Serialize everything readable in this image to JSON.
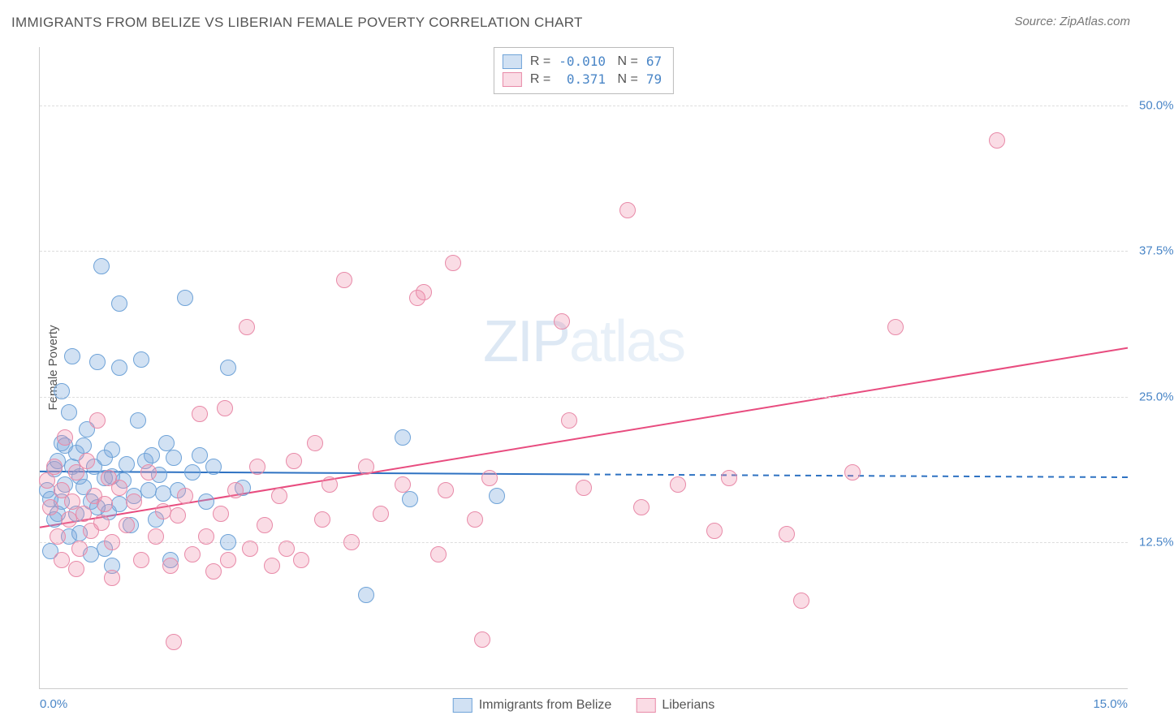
{
  "title": "IMMIGRANTS FROM BELIZE VS LIBERIAN FEMALE POVERTY CORRELATION CHART",
  "source": "Source: ZipAtlas.com",
  "watermark_a": "ZIP",
  "watermark_b": "atlas",
  "chart": {
    "type": "scatter",
    "background": "#ffffff",
    "grid_color": "#dddddd",
    "axis_color": "#cccccc",
    "yaxis_title": "Female Poverty",
    "xlim": [
      0,
      15
    ],
    "ylim": [
      0,
      55
    ],
    "yticks": [
      12.5,
      25.0,
      37.5,
      50.0
    ],
    "ytick_labels": [
      "12.5%",
      "25.0%",
      "37.5%",
      "50.0%"
    ],
    "xtick_labels": {
      "left": "0.0%",
      "right": "15.0%"
    },
    "tick_color": "#4a86c7",
    "marker_radius": 9,
    "marker_border": 1,
    "series": [
      {
        "name": "Immigrants from Belize",
        "fill": "rgba(122,170,220,0.35)",
        "stroke": "#6fa3d8",
        "R": "-0.010",
        "N": "67",
        "regression": {
          "x1": 0,
          "y1": 18.6,
          "x2": 15,
          "y2": 18.1,
          "solid_until_x": 7.5,
          "color": "#2e72c2",
          "width": 2
        },
        "points": [
          [
            0.1,
            17.0
          ],
          [
            0.15,
            16.2
          ],
          [
            0.2,
            18.8
          ],
          [
            0.2,
            14.5
          ],
          [
            0.25,
            19.5
          ],
          [
            0.3,
            16.0
          ],
          [
            0.3,
            21.0
          ],
          [
            0.35,
            17.5
          ],
          [
            0.4,
            23.7
          ],
          [
            0.4,
            13.0
          ],
          [
            0.45,
            19.0
          ],
          [
            0.5,
            20.2
          ],
          [
            0.5,
            15.0
          ],
          [
            0.55,
            18.2
          ],
          [
            0.6,
            17.3
          ],
          [
            0.65,
            22.2
          ],
          [
            0.7,
            16.0
          ],
          [
            0.3,
            25.5
          ],
          [
            0.75,
            19.0
          ],
          [
            0.8,
            28.0
          ],
          [
            0.85,
            36.2
          ],
          [
            0.9,
            18.0
          ],
          [
            0.95,
            15.1
          ],
          [
            1.0,
            20.5
          ],
          [
            1.1,
            27.5
          ],
          [
            1.1,
            33.0
          ],
          [
            1.15,
            17.8
          ],
          [
            1.2,
            19.2
          ],
          [
            1.25,
            14.0
          ],
          [
            1.3,
            16.5
          ],
          [
            1.35,
            23.0
          ],
          [
            1.4,
            28.2
          ],
          [
            1.45,
            19.5
          ],
          [
            1.5,
            17.0
          ],
          [
            1.55,
            20.0
          ],
          [
            1.6,
            14.5
          ],
          [
            1.65,
            18.3
          ],
          [
            1.7,
            16.7
          ],
          [
            1.75,
            21.0
          ],
          [
            1.8,
            11.0
          ],
          [
            1.85,
            19.8
          ],
          [
            1.9,
            17.0
          ],
          [
            0.9,
            12.0
          ],
          [
            0.7,
            11.5
          ],
          [
            1.0,
            10.5
          ],
          [
            2.0,
            33.5
          ],
          [
            2.1,
            18.5
          ],
          [
            2.2,
            20.0
          ],
          [
            2.3,
            16.0
          ],
          [
            2.4,
            19.0
          ],
          [
            2.6,
            27.5
          ],
          [
            2.6,
            12.5
          ],
          [
            2.8,
            17.2
          ],
          [
            0.45,
            28.5
          ],
          [
            5.0,
            21.5
          ],
          [
            5.1,
            16.2
          ],
          [
            4.5,
            8.0
          ],
          [
            6.3,
            16.5
          ],
          [
            0.55,
            13.3
          ],
          [
            0.6,
            20.8
          ],
          [
            0.8,
            15.5
          ],
          [
            0.35,
            20.8
          ],
          [
            0.25,
            15.0
          ],
          [
            0.9,
            19.8
          ],
          [
            1.0,
            18.2
          ],
          [
            1.1,
            15.8
          ],
          [
            0.15,
            11.8
          ]
        ]
      },
      {
        "name": "Liberians",
        "fill": "rgba(240,140,170,0.30)",
        "stroke": "#e88aa8",
        "R": "0.371",
        "N": "79",
        "regression": {
          "x1": 0,
          "y1": 13.8,
          "x2": 15,
          "y2": 29.2,
          "solid_until_x": 15,
          "color": "#e84c7f",
          "width": 2
        },
        "points": [
          [
            0.1,
            17.8
          ],
          [
            0.15,
            15.5
          ],
          [
            0.2,
            19.0
          ],
          [
            0.25,
            13.0
          ],
          [
            0.3,
            17.0
          ],
          [
            0.35,
            21.5
          ],
          [
            0.4,
            14.5
          ],
          [
            0.45,
            16.0
          ],
          [
            0.5,
            18.5
          ],
          [
            0.55,
            12.0
          ],
          [
            0.6,
            15.0
          ],
          [
            0.65,
            19.5
          ],
          [
            0.7,
            13.5
          ],
          [
            0.75,
            16.5
          ],
          [
            0.8,
            23.0
          ],
          [
            0.85,
            14.2
          ],
          [
            0.9,
            15.8
          ],
          [
            0.95,
            18.0
          ],
          [
            1.0,
            12.5
          ],
          [
            1.1,
            17.2
          ],
          [
            1.2,
            14.0
          ],
          [
            1.3,
            16.0
          ],
          [
            1.4,
            11.0
          ],
          [
            1.5,
            18.5
          ],
          [
            1.6,
            13.0
          ],
          [
            1.7,
            15.2
          ],
          [
            1.8,
            10.5
          ],
          [
            1.85,
            4.0
          ],
          [
            1.9,
            14.8
          ],
          [
            2.0,
            16.5
          ],
          [
            2.1,
            11.5
          ],
          [
            2.2,
            23.5
          ],
          [
            2.3,
            13.0
          ],
          [
            2.4,
            10.0
          ],
          [
            2.5,
            15.0
          ],
          [
            2.55,
            24.0
          ],
          [
            2.6,
            11.0
          ],
          [
            2.7,
            17.0
          ],
          [
            2.85,
            31.0
          ],
          [
            2.9,
            12.0
          ],
          [
            3.0,
            19.0
          ],
          [
            3.1,
            14.0
          ],
          [
            3.2,
            10.5
          ],
          [
            3.3,
            16.5
          ],
          [
            3.4,
            12.0
          ],
          [
            3.5,
            19.5
          ],
          [
            3.6,
            11.0
          ],
          [
            3.8,
            21.0
          ],
          [
            3.9,
            14.5
          ],
          [
            4.0,
            17.5
          ],
          [
            4.2,
            35.0
          ],
          [
            4.3,
            12.5
          ],
          [
            4.5,
            19.0
          ],
          [
            4.7,
            15.0
          ],
          [
            5.0,
            17.5
          ],
          [
            5.2,
            33.5
          ],
          [
            5.3,
            34.0
          ],
          [
            5.5,
            11.5
          ],
          [
            5.6,
            17.0
          ],
          [
            5.7,
            36.5
          ],
          [
            6.0,
            14.5
          ],
          [
            6.1,
            4.2
          ],
          [
            6.2,
            18.0
          ],
          [
            7.2,
            31.5
          ],
          [
            7.3,
            23.0
          ],
          [
            7.5,
            17.2
          ],
          [
            8.1,
            41.0
          ],
          [
            8.3,
            15.5
          ],
          [
            8.8,
            17.5
          ],
          [
            9.3,
            13.5
          ],
          [
            9.5,
            18.0
          ],
          [
            10.3,
            13.2
          ],
          [
            10.5,
            7.5
          ],
          [
            11.2,
            18.5
          ],
          [
            11.8,
            31.0
          ],
          [
            13.2,
            47.0
          ],
          [
            0.3,
            11.0
          ],
          [
            0.5,
            10.2
          ],
          [
            1.0,
            9.5
          ]
        ]
      }
    ]
  },
  "bottom_legend": [
    {
      "label": "Immigrants from Belize",
      "fill": "rgba(122,170,220,0.35)",
      "stroke": "#6fa3d8"
    },
    {
      "label": "Liberians",
      "fill": "rgba(240,140,170,0.30)",
      "stroke": "#e88aa8"
    }
  ]
}
